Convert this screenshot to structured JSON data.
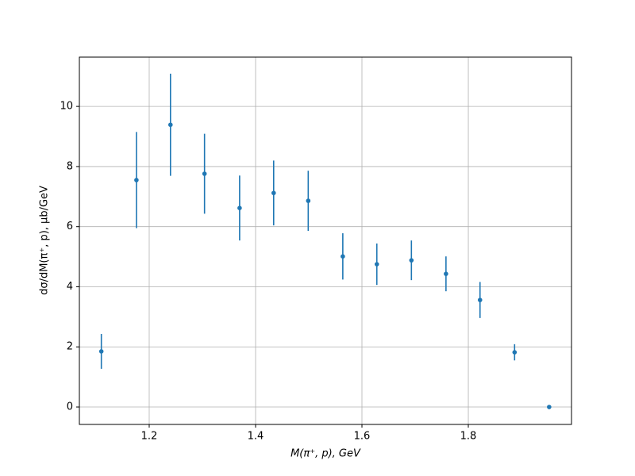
{
  "chart_data": {
    "type": "errorbar",
    "x_label": "M(π⁺, p), GeV",
    "y_label": "dσ/dM(π⁺, p), μb/GeV",
    "x": [
      1.11,
      1.176,
      1.24,
      1.304,
      1.37,
      1.434,
      1.499,
      1.564,
      1.628,
      1.693,
      1.758,
      1.822,
      1.887,
      1.952
    ],
    "values": [
      1.85,
      7.55,
      9.39,
      7.76,
      6.62,
      7.12,
      6.86,
      5.01,
      4.75,
      4.88,
      4.43,
      3.56,
      1.82,
      0
    ],
    "errors": [
      0.58,
      1.6,
      1.7,
      1.33,
      1.08,
      1.08,
      1.0,
      0.77,
      0.69,
      0.66,
      0.58,
      0.6,
      0.27,
      0
    ],
    "color": "#1f77b4",
    "xlim": [
      1.0687,
      1.994
    ],
    "xticks": [
      1.2,
      1.4,
      1.6,
      1.8
    ],
    "ylim": [
      -0.58,
      11.64
    ],
    "yticks": [
      0,
      2,
      4,
      6,
      8,
      10
    ],
    "grid": true
  }
}
